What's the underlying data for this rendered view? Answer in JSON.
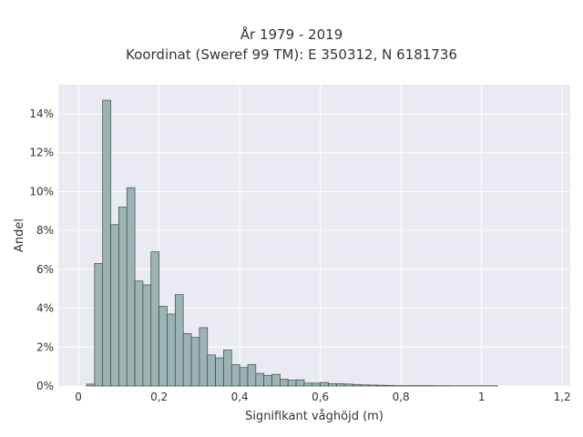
{
  "colors": {
    "plot_background": "#eaeaf2",
    "grid": "#ffffff",
    "bar_fill": "#9bb3b3",
    "bar_edge": "#3c4a4a",
    "text": "#333333"
  },
  "chart_data": {
    "type": "bar",
    "title": "År 1979 - 2019",
    "subtitle": "Koordinat (Sweref 99 TM): E 350312, N 6181736",
    "xlabel": "Signifikant våghöjd (m)",
    "ylabel": "Andel",
    "xlim": [
      -0.05,
      1.22
    ],
    "ylim": [
      0,
      15.5
    ],
    "x_ticks": [
      0,
      0.2,
      0.4,
      0.6,
      0.8,
      1,
      1.2
    ],
    "x_tick_labels": [
      "0",
      "0,2",
      "0,4",
      "0,6",
      "0,8",
      "1",
      "1,2"
    ],
    "y_ticks": [
      0,
      2,
      4,
      6,
      8,
      10,
      12,
      14
    ],
    "y_tick_labels": [
      "0%",
      "2%",
      "4%",
      "6%",
      "8%",
      "10%",
      "12%",
      "14%"
    ],
    "grid": true,
    "bin_width": 0.02,
    "bins_start": [
      0.02,
      0.04,
      0.06,
      0.08,
      0.1,
      0.12,
      0.14,
      0.16,
      0.18,
      0.2,
      0.22,
      0.24,
      0.26,
      0.28,
      0.3,
      0.32,
      0.34,
      0.36,
      0.38,
      0.4,
      0.42,
      0.44,
      0.46,
      0.48,
      0.5,
      0.52,
      0.54,
      0.56,
      0.58,
      0.6,
      0.62,
      0.64,
      0.66,
      0.68,
      0.7,
      0.72,
      0.74,
      0.76,
      0.78,
      0.8,
      0.82,
      0.84,
      0.86,
      0.88,
      0.9,
      0.92,
      0.94,
      0.96,
      0.98,
      1.0,
      1.02
    ],
    "values": [
      0.1,
      6.3,
      14.7,
      8.3,
      9.2,
      10.2,
      5.4,
      5.2,
      6.9,
      4.1,
      3.7,
      4.7,
      2.7,
      2.5,
      3.0,
      1.6,
      1.45,
      1.85,
      1.1,
      0.95,
      1.1,
      0.65,
      0.55,
      0.6,
      0.35,
      0.3,
      0.32,
      0.15,
      0.15,
      0.18,
      0.12,
      0.12,
      0.1,
      0.08,
      0.06,
      0.05,
      0.04,
      0.03,
      0.02,
      0.02,
      0.02,
      0.02,
      0.02,
      0.015,
      0.015,
      0.01,
      0.01,
      0.01,
      0.01,
      0.01,
      0.01
    ]
  }
}
